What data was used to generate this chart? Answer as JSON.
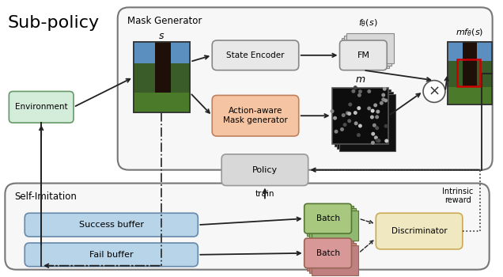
{
  "bg": "#ffffff",
  "title": "Sub-policy",
  "mask_gen_label": "Mask Generator",
  "self_imit_label": "Self-Imitation",
  "intrinsic_label": "Intrinsic\nreward",
  "train_label": "train",
  "s_label": "$s$",
  "m_label": "$m$",
  "ftheta_label": "$f_\\theta(s)$",
  "mftheta_label": "$mf_\\theta(s)$"
}
